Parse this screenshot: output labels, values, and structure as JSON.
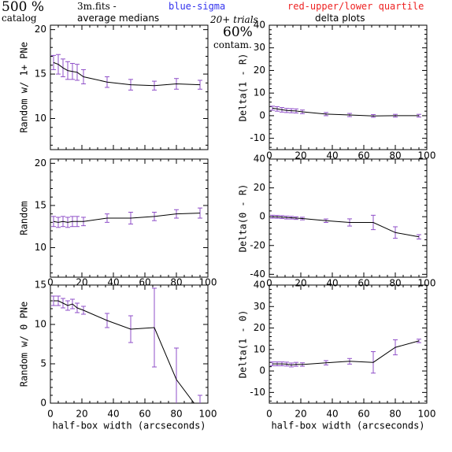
{
  "header": {
    "percent_top": "500 %",
    "catalog": "catalog",
    "file_text": "3m.fits  -",
    "blue_label": "blue-sigma",
    "red_label": "red-upper/lower quartile",
    "average_medians": "average medians",
    "trials": "20+ trials",
    "delta_plots": "delta plots",
    "contam_pct": "60%",
    "contam": "contam."
  },
  "colors": {
    "line": "#000000",
    "error_bar": "#8f4fc8",
    "blue": "#3333ee",
    "red": "#ee2222",
    "axis": "#000000"
  },
  "chart_data": [
    {
      "id": "left-top",
      "type": "line",
      "ylabel": "Random w/ 1+ PNe",
      "xlabel": "",
      "xlim": [
        0,
        100
      ],
      "ylim": [
        6.5,
        20.5
      ],
      "xticks": [
        0,
        20,
        40,
        60,
        80,
        100
      ],
      "yticks": [
        10,
        15,
        20
      ],
      "show_xticklabels": false,
      "x": [
        2,
        5,
        8,
        11,
        14,
        17,
        21,
        36,
        51,
        66,
        80,
        95
      ],
      "y": [
        16.3,
        16.1,
        15.7,
        15.4,
        15.3,
        15.2,
        14.7,
        14.1,
        13.8,
        13.7,
        13.9,
        13.8
      ],
      "err": [
        0.8,
        1.1,
        1.0,
        1.0,
        0.9,
        0.9,
        0.8,
        0.6,
        0.6,
        0.5,
        0.6,
        0.5
      ]
    },
    {
      "id": "right-top",
      "type": "line",
      "ylabel": "Delta(1 - R)",
      "xlabel": "",
      "xlim": [
        0,
        100
      ],
      "ylim": [
        -15,
        40
      ],
      "xticks": [
        0,
        20,
        40,
        60,
        80,
        100
      ],
      "yticks": [
        -10,
        0,
        10,
        20,
        30,
        40
      ],
      "show_xticklabels": true,
      "x": [
        2,
        5,
        8,
        11,
        14,
        17,
        21,
        36,
        51,
        66,
        80,
        95
      ],
      "y": [
        3.3,
        3.0,
        2.6,
        2.3,
        2.2,
        2.1,
        1.7,
        0.7,
        0.3,
        -0.1,
        0.0,
        0.0
      ],
      "err": [
        0.9,
        1.0,
        1.0,
        0.9,
        0.9,
        0.9,
        0.8,
        0.7,
        0.7,
        0.6,
        0.6,
        0.6
      ]
    },
    {
      "id": "left-middle",
      "type": "line",
      "ylabel": "Random",
      "xlabel": "",
      "xlim": [
        0,
        100
      ],
      "ylim": [
        6.5,
        20.5
      ],
      "xticks": [
        0,
        20,
        40,
        60,
        80,
        100
      ],
      "yticks": [
        10,
        15,
        20
      ],
      "show_xticklabels": true,
      "x": [
        2,
        5,
        8,
        11,
        14,
        17,
        21,
        36,
        51,
        66,
        80,
        95
      ],
      "y": [
        13.1,
        13.0,
        13.1,
        13.0,
        13.1,
        13.1,
        13.1,
        13.5,
        13.5,
        13.7,
        14.0,
        14.1
      ],
      "err": [
        0.6,
        0.6,
        0.6,
        0.6,
        0.6,
        0.6,
        0.5,
        0.5,
        0.7,
        0.5,
        0.5,
        0.6
      ]
    },
    {
      "id": "right-middle",
      "type": "line",
      "ylabel": "Delta(0 - R)",
      "xlabel": "",
      "xlim": [
        0,
        100
      ],
      "ylim": [
        -42,
        40
      ],
      "xticks": [
        0,
        20,
        40,
        60,
        80,
        100
      ],
      "yticks": [
        -40,
        -20,
        0,
        20,
        40
      ],
      "show_xticklabels": true,
      "x": [
        2,
        5,
        8,
        11,
        14,
        17,
        21,
        36,
        51,
        66,
        80,
        95
      ],
      "y": [
        0.0,
        -0.1,
        -0.3,
        -0.6,
        -0.7,
        -1.0,
        -1.3,
        -2.8,
        -4.0,
        -4.0,
        -11.0,
        -14.0
      ],
      "err": [
        1.0,
        1.0,
        1.0,
        1.0,
        0.9,
        0.9,
        0.9,
        1.2,
        2.5,
        5.0,
        4.0,
        1.5
      ]
    },
    {
      "id": "left-bottom",
      "type": "line",
      "ylabel": "Random w/ 0 PNe",
      "xlabel": "half-box width (arcseconds)",
      "xlim": [
        0,
        100
      ],
      "ylim": [
        0,
        15
      ],
      "xticks": [
        0,
        20,
        40,
        60,
        80,
        100
      ],
      "yticks": [
        0,
        5,
        10,
        15
      ],
      "show_xticklabels": true,
      "x": [
        2,
        5,
        8,
        11,
        14,
        17,
        21,
        36,
        51,
        66,
        80,
        95
      ],
      "y": [
        13.0,
        13.0,
        12.7,
        12.4,
        12.6,
        12.1,
        11.8,
        10.5,
        9.4,
        9.6,
        3.0,
        -1.0
      ],
      "err": [
        0.6,
        0.6,
        0.6,
        0.6,
        0.6,
        0.6,
        0.5,
        0.9,
        1.7,
        5.0,
        4.0,
        2.0
      ]
    },
    {
      "id": "right-bottom",
      "type": "line",
      "ylabel": "Delta(1 - 0)",
      "xlabel": "half-box width (arcseconds)",
      "xlim": [
        0,
        100
      ],
      "ylim": [
        -15,
        40
      ],
      "xticks": [
        0,
        20,
        40,
        60,
        80,
        100
      ],
      "yticks": [
        -10,
        0,
        10,
        20,
        30,
        40
      ],
      "show_xticklabels": true,
      "x": [
        2,
        5,
        8,
        11,
        14,
        17,
        21,
        36,
        51,
        66,
        80,
        95
      ],
      "y": [
        3.3,
        3.3,
        3.3,
        3.2,
        2.8,
        3.1,
        3.0,
        3.8,
        4.5,
        4.0,
        11.0,
        14.0
      ],
      "err": [
        0.9,
        0.9,
        0.9,
        0.9,
        0.9,
        0.9,
        0.8,
        1.0,
        1.3,
        5.0,
        3.5,
        0.8
      ]
    }
  ]
}
